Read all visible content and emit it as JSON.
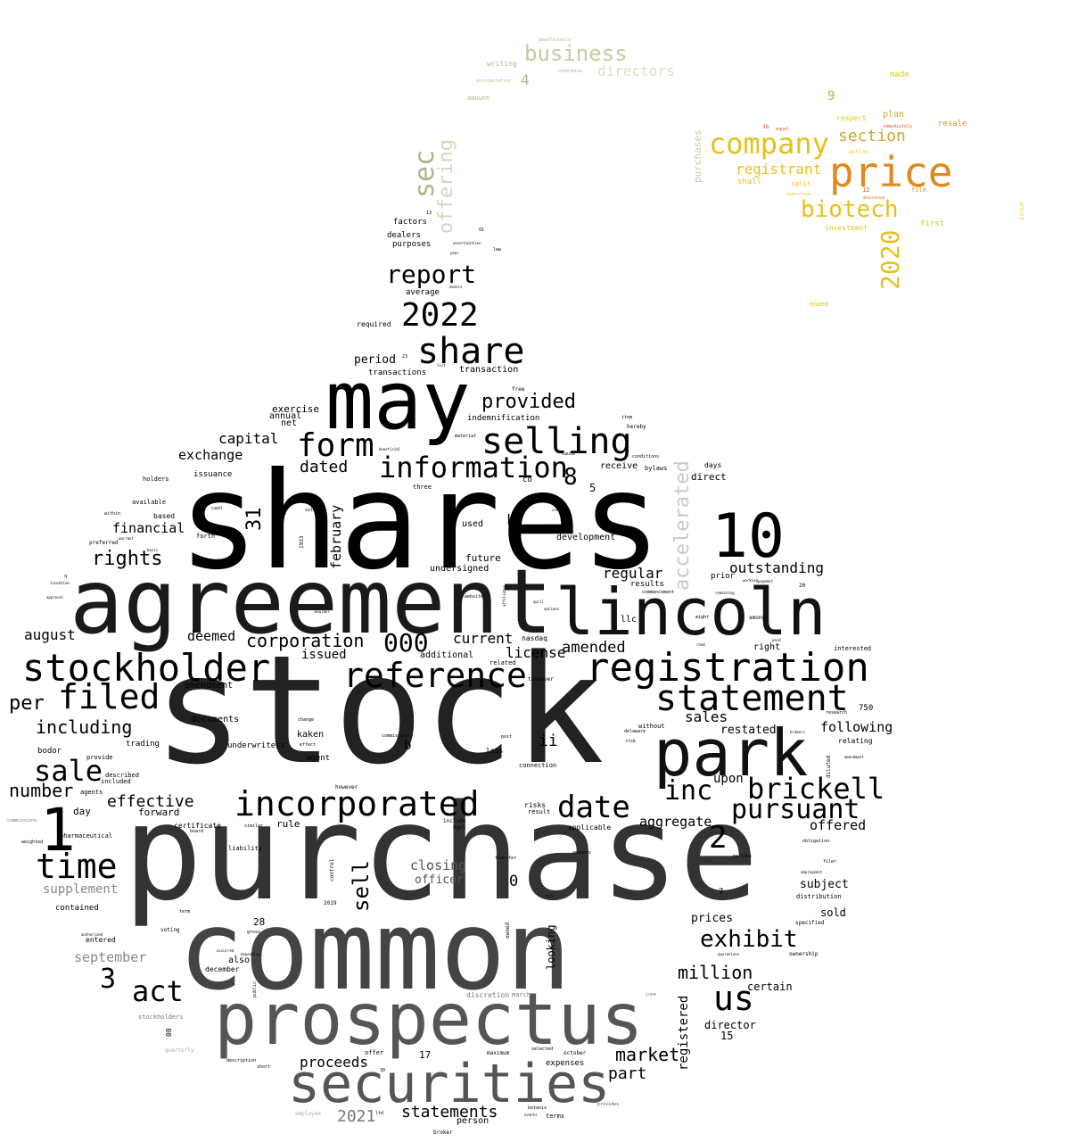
{
  "colors": {
    "near_black": "#000000",
    "dark_gray": "#2a2a2a",
    "mid_gray": "#555555",
    "gray": "#777777",
    "light_gray": "#aaaaaa",
    "orange": "#e08a1e",
    "gold": "#e3c21d",
    "olive": "#b3b38a",
    "khaki": "#c9c9a3",
    "red": "#e05a2a",
    "yellow": "#f1d33b"
  },
  "words": {
    "stock": "stock",
    "purchase": "purchase",
    "shares": "shares",
    "common": "common",
    "agreement": "agreement",
    "prospectus": "prospectus",
    "may": "may",
    "lincoln": "lincoln",
    "park": "park",
    "securities": "securities",
    "w10": "10",
    "registration": "registration",
    "stockholder": "stockholder",
    "statement": "statement",
    "share": "share",
    "selling": "selling",
    "incorporated": "incorporated",
    "reference": "reference",
    "information": "information",
    "form": "form",
    "w2022": "2022",
    "price": "price",
    "time": "time",
    "filed": "filed",
    "w1": "1",
    "company": "company",
    "brickell": "brickell",
    "pursuant": "pursuant",
    "date": "date",
    "us": "us",
    "inc": "inc",
    "act": "act",
    "sale": "sale",
    "exhibit": "exhibit",
    "biotech": "biotech",
    "report": "report",
    "sec": "sec",
    "accelerated": "accelerated",
    "offering": "offering",
    "business": "business",
    "directors": "directors",
    "w2020": "2020",
    "w31": "31",
    "w2": "2",
    "w3": "3",
    "w8": "8",
    "w000": "000",
    "sell": "sell",
    "provided": "provided",
    "corporation": "corporation",
    "rights": "rights",
    "million": "million",
    "market": "market",
    "proceeds": "proceeds",
    "statements": "statements",
    "w2021": "2021",
    "february": "february",
    "registered": "registered",
    "looking": "looking",
    "closing": "closing",
    "officer": "officer",
    "supplement": "supplement",
    "september": "september",
    "effective": "effective",
    "number": "number",
    "including": "including",
    "per": "per",
    "financial": "financial",
    "exchange": "exchange",
    "capital": "capital",
    "dated": "dated",
    "august": "august",
    "deemed": "deemed",
    "issued": "issued",
    "current": "current",
    "license": "license",
    "amended": "amended",
    "regular": "regular",
    "outstanding": "outstanding",
    "sales": "sales",
    "restated": "restated",
    "following": "following",
    "upon": "upon",
    "aggregate": "aggregate",
    "offered": "offered",
    "subject": "subject",
    "sold": "sold",
    "prices": "prices",
    "director": "director",
    "certain": "certain",
    "part": "part",
    "section": "section",
    "registrant": "registrant",
    "period": "period",
    "transactions": "transactions",
    "transaction": "transaction",
    "average": "average",
    "required": "required",
    "factors": "factors",
    "dealers": "dealers",
    "purposes": "purposes",
    "exercise": "exercise",
    "annual": "annual",
    "net": "net",
    "issuance": "issuance",
    "holders": "holders",
    "available": "available",
    "based": "based",
    "forth": "forth",
    "preferred": "preferred",
    "development": "development",
    "future": "future",
    "undersigned": "undersigned",
    "used": "used",
    "receive": "receive",
    "direct": "direct",
    "days": "days",
    "bylaws": "bylaws",
    "conditions": "conditions",
    "hereby": "hereby",
    "item": "item",
    "indemnification": "indemnification",
    "free": "free",
    "co": "co",
    "k": "k",
    "w5": "5",
    "llc": "llc",
    "results": "results",
    "prior": "prior",
    "right": "right",
    "interested": "interested",
    "w750": "750",
    "relating": "relating",
    "additional": "additional",
    "nasdaq": "nasdaq",
    "related": "related",
    "ii": "ii",
    "b": "b",
    "kaken": "kaken",
    "agent": "agent",
    "documents": "documents",
    "underwriters": "underwriters",
    "amendment": "amendment",
    "trading": "trading",
    "bodor": "bodor",
    "provide": "provide",
    "described": "described",
    "included": "included",
    "agents": "agents",
    "day": "day",
    "forward": "forward",
    "certificate": "certificate",
    "board": "board",
    "rule": "rule",
    "liability": "liability",
    "pharmaceutical": "pharmaceutical",
    "contained": "contained",
    "entered": "entered",
    "also": "also",
    "december": "december",
    "w28": "28",
    "risks": "risks",
    "result": "result",
    "applicable": "applicable",
    "amounts": "amounts",
    "include": "include",
    "dgcl": "dgcl",
    "w0": "0",
    "w17": "17",
    "w15": "15",
    "w7": "7",
    "expenses": "expenses",
    "person": "person",
    "terms": "terms",
    "maximum": "maximum",
    "october": "october",
    "stockholders": "stockholders",
    "quarterly": "quarterly",
    "w4": "4",
    "writing": "writing",
    "amount": "amount",
    "incorporation": "incorporation",
    "beneficially": "beneficially",
    "otherwise": "otherwise",
    "made": "made",
    "plan": "plan",
    "resale": "resale",
    "respect": "respect",
    "w9": "9",
    "shall": "shall",
    "split": "split",
    "first": "first",
    "file": "file",
    "w12": "12",
    "investment": "investment",
    "ended": "ended",
    "purchases": "purchases",
    "issue": "issue",
    "commissions": "commissions",
    "weighted": "weighted",
    "w00": "00",
    "w2019": "2019",
    "discretion": "discretion",
    "march": "march",
    "june": "june",
    "employee": "employee",
    "broker": "broker",
    "ltd": "ltd",
    "offer": "offer",
    "short": "short",
    "description": "description",
    "w30": "30",
    "selected": "selected",
    "botanix": "botanix",
    "events": "events",
    "provides": "provides",
    "w1933": "1933",
    "w13": "13",
    "w01": "01",
    "law": "law",
    "uncertainties": "uncertainties",
    "year": "year",
    "voting": "voting",
    "term": "term",
    "authorized": "authorized",
    "gross": "gross",
    "occurred": "occurred",
    "depending": "depending",
    "public": "public",
    "similar": "similar",
    "control": "control",
    "owned": "owned",
    "transfer": "transfer",
    "non": "non",
    "loss": "loss",
    "post": "post",
    "connection": "connection",
    "however": "however",
    "change": "change",
    "effect": "effect",
    "commission": "commission",
    "takeover": "takeover",
    "without": "without",
    "delaware": "delaware",
    "risk": "risk",
    "ownership": "ownership",
    "specified": "specified",
    "distribution": "distribution",
    "operations": "operations",
    "obligation": "obligation",
    "filer": "filer",
    "employment": "employment",
    "persons": "persons",
    "research": "research",
    "diluted": "diluted",
    "amendment2": "amendment",
    "material": "material",
    "beneficial": "beneficial",
    "cause": "cause",
    "three": "three",
    "contains": "contains",
    "sole": "sole",
    "cash": "cash",
    "within": "within",
    "warrant": "warrant",
    "basic": "basic",
    "incentive": "incentive",
    "approval": "approval",
    "q": "q",
    "website": "website",
    "brokers": "brokers",
    "boulder": "boulder",
    "affiliates": "affiliates",
    "april": "april",
    "options": "options",
    "commencement": "commencement",
    "might": "might",
    "among": "among",
    "working": "working",
    "payment": "payment",
    "remaining": "remaining",
    "w20": "20",
    "read": "read",
    "paid": "paid",
    "w23": "23",
    "owners": "owners",
    "list": "list",
    "executive": "executive",
    "equal": "equal",
    "immediately": "immediately",
    "action": "action",
    "determined": "determined",
    "w36": "36"
  }
}
